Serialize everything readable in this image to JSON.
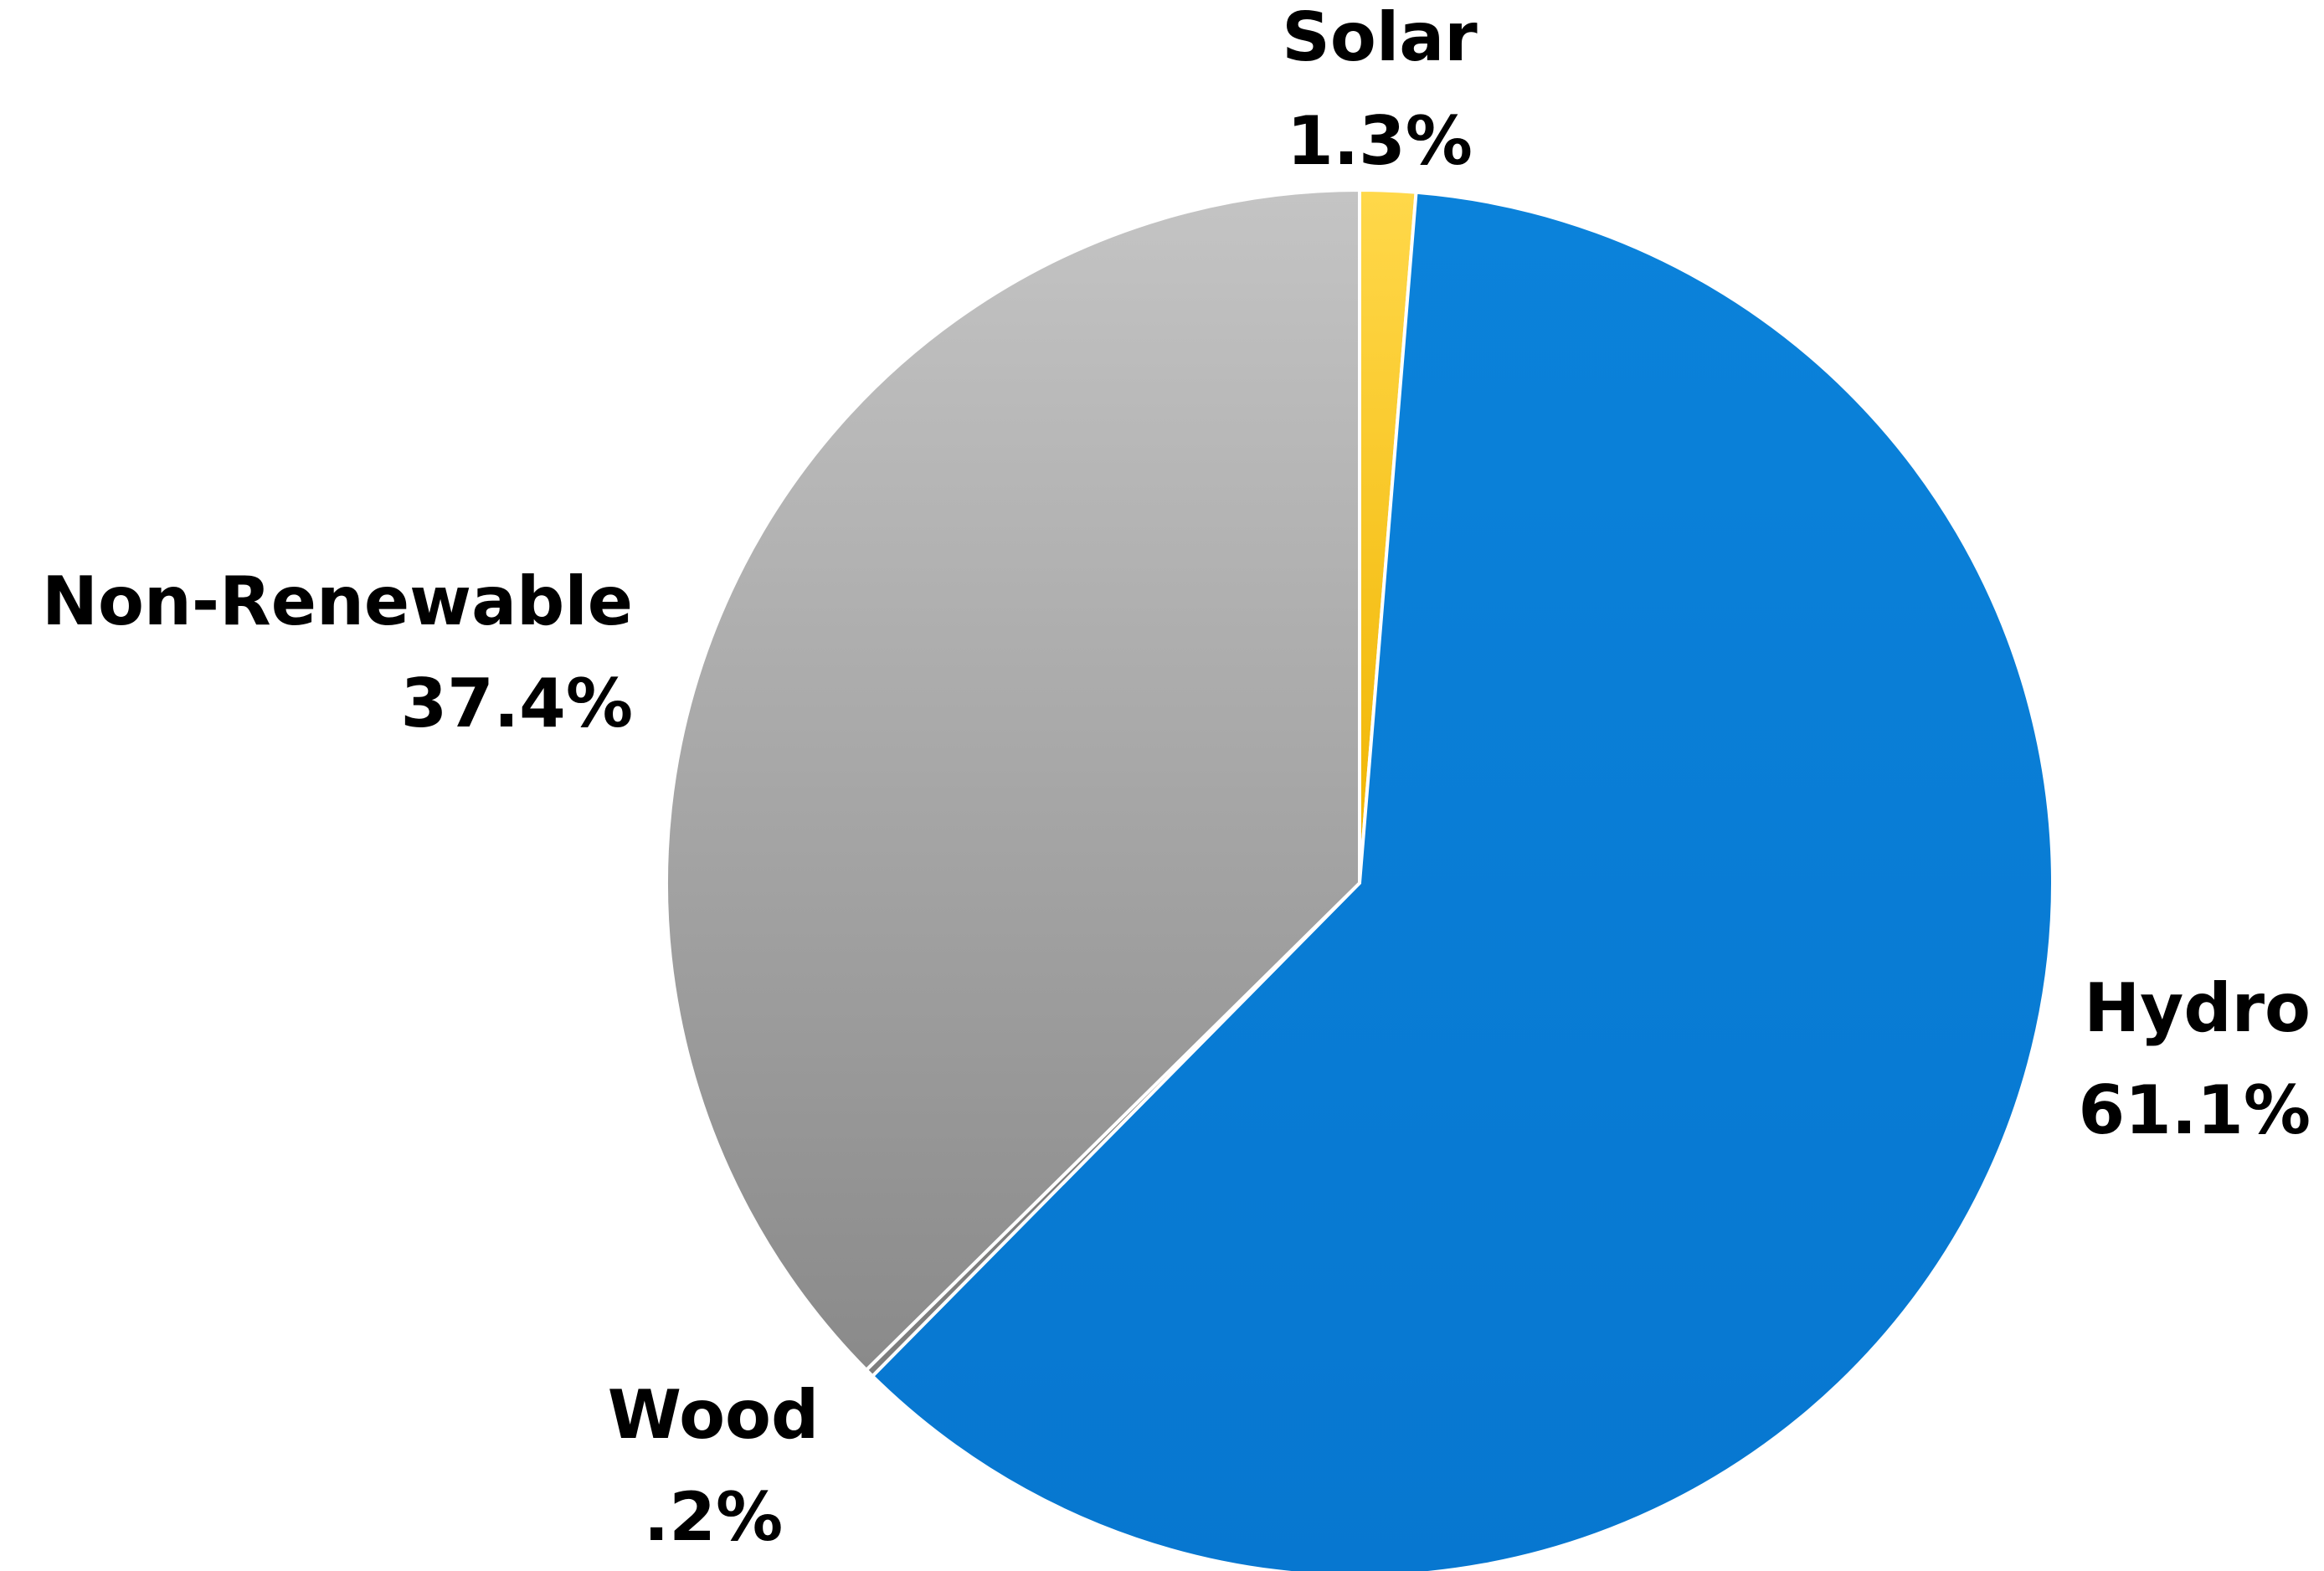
{
  "chart_data": {
    "type": "pie",
    "title": "",
    "slices": [
      {
        "label": "Solar",
        "value": 1.3,
        "display": "1.3%",
        "color": "#F5C518",
        "label_pos": "top"
      },
      {
        "label": "Hydro",
        "value": 61.1,
        "display": "61.1%",
        "color": "#0A7ED6",
        "label_pos": "right"
      },
      {
        "label": "Wood",
        "value": 0.2,
        "display": ".2%",
        "color": "#8A8A8A",
        "label_pos": "bottom-left"
      },
      {
        "label": "Non-Renewable",
        "value": 37.4,
        "display": "37.4%",
        "color": "#A8A8A8",
        "label_pos": "left"
      }
    ],
    "legend": "none"
  }
}
